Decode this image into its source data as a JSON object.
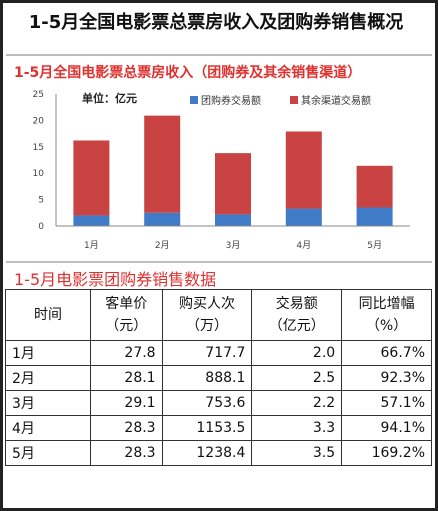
{
  "page": {
    "title": "1-5月全国电影票总票房收入及团购券销售概况"
  },
  "chart_data": {
    "type": "bar",
    "stacked": true,
    "title": "1-5月全国电影票总票房收入（团购券及其余销售渠道）",
    "unit_label": "单位：亿元",
    "categories": [
      "1月",
      "2月",
      "3月",
      "4月",
      "5月"
    ],
    "series": [
      {
        "name": "团购券交易额",
        "color": "#3f7bc6",
        "values": [
          2.0,
          2.5,
          2.2,
          3.3,
          3.5
        ]
      },
      {
        "name": "其余渠道交易额",
        "color": "#c94343",
        "values": [
          14.2,
          18.4,
          11.6,
          14.6,
          7.9
        ]
      }
    ],
    "ylim": [
      0,
      25
    ],
    "yticks": [
      0,
      5,
      10,
      15,
      20,
      25
    ],
    "legend_position": "top-right"
  },
  "table": {
    "title": "1-5月电影票团购券销售数据",
    "headers": [
      {
        "line1": "时间",
        "line2": ""
      },
      {
        "line1": "客单价",
        "line2": "（元）"
      },
      {
        "line1": "购买人次",
        "line2": "（万）"
      },
      {
        "line1": "交易额",
        "line2": "（亿元）"
      },
      {
        "line1": "同比增幅",
        "line2": "（%）"
      }
    ],
    "rows": [
      {
        "month": "1月",
        "price": "27.8",
        "buyers": "717.7",
        "amount": "2.0",
        "growth": "66.7%"
      },
      {
        "month": "2月",
        "price": "28.1",
        "buyers": "888.1",
        "amount": "2.5",
        "growth": "92.3%"
      },
      {
        "month": "3月",
        "price": "29.1",
        "buyers": "753.6",
        "amount": "2.2",
        "growth": "57.1%"
      },
      {
        "month": "4月",
        "price": "28.3",
        "buyers": "1153.5",
        "amount": "3.3",
        "growth": "94.1%"
      },
      {
        "month": "5月",
        "price": "28.3",
        "buyers": "1238.4",
        "amount": "3.5",
        "growth": "169.2%"
      }
    ]
  }
}
